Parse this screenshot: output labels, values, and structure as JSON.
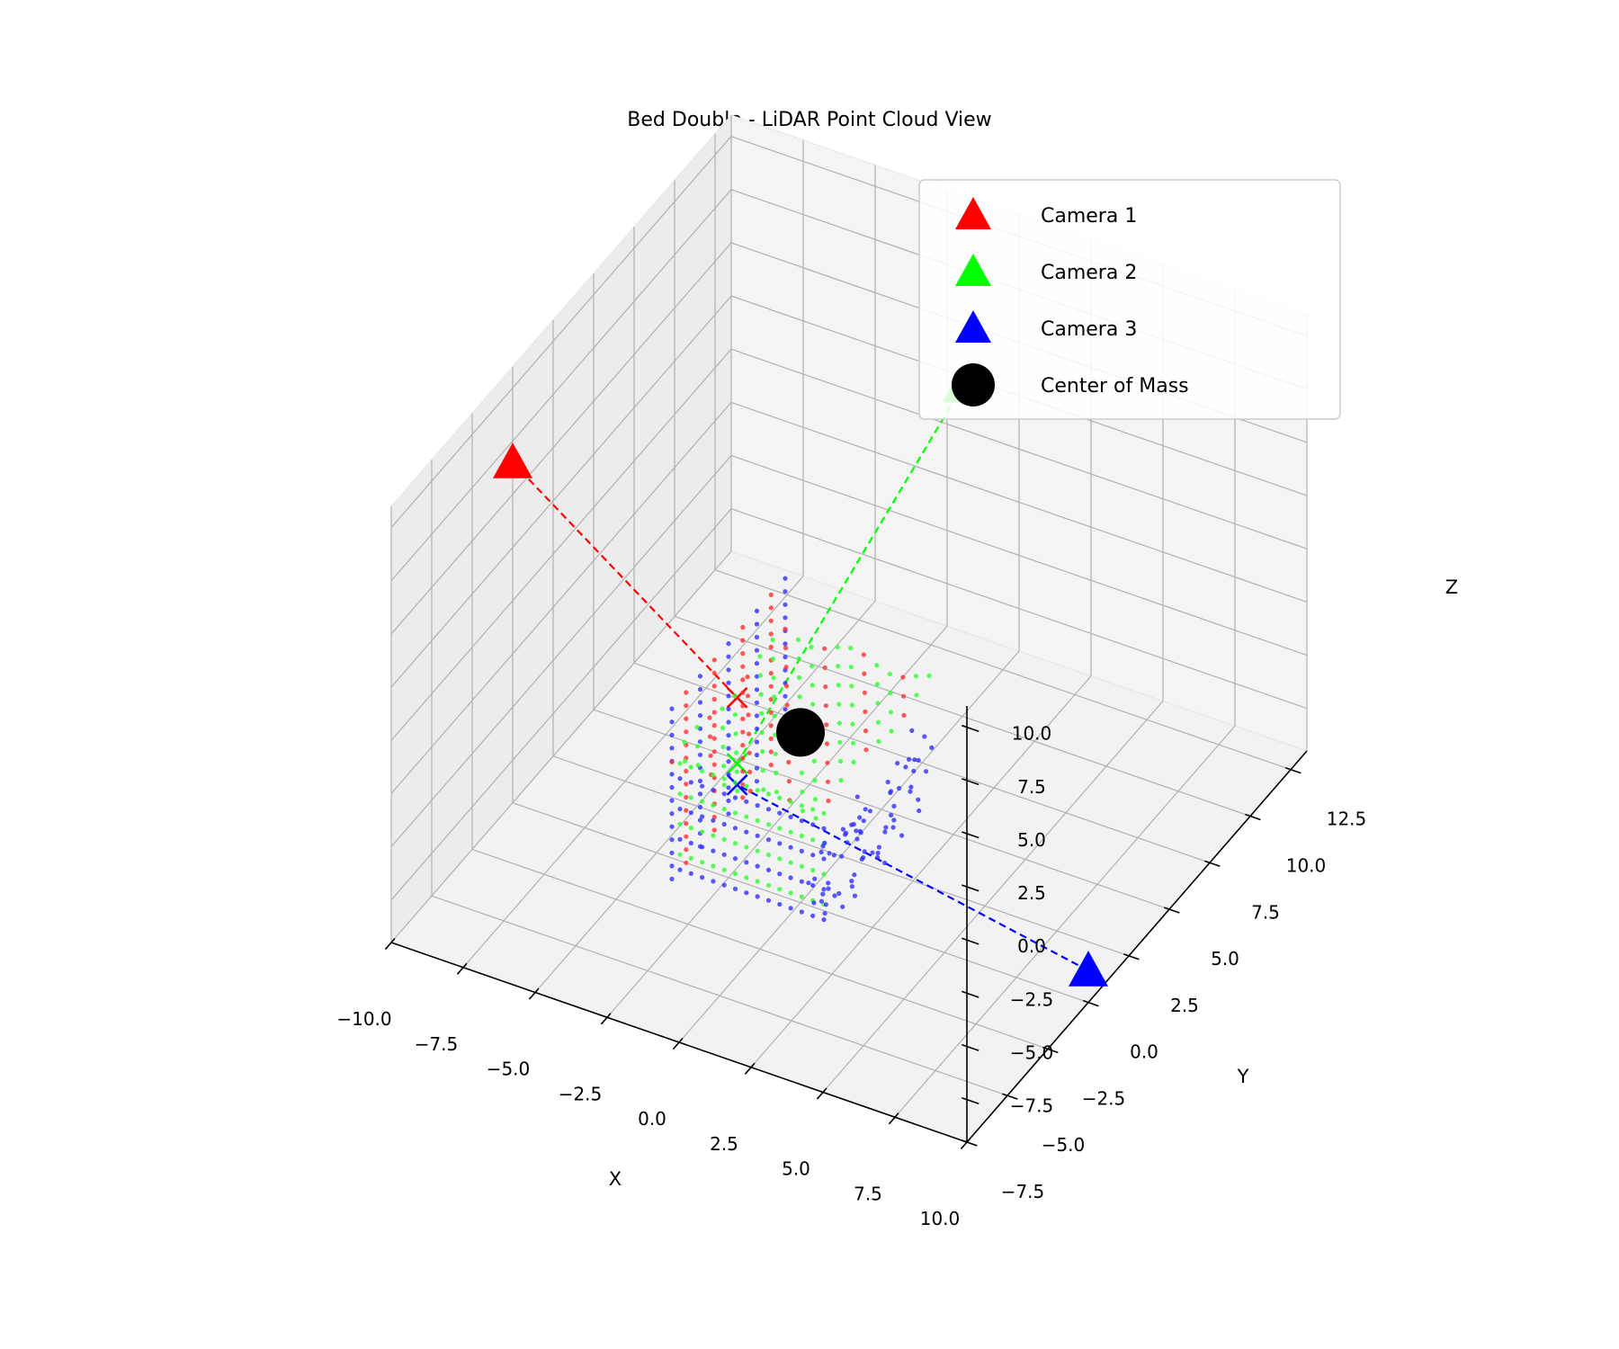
{
  "chart_data": {
    "type": "scatter",
    "projection": "3d",
    "title": "Bed Double - LiDAR Point Cloud View",
    "xlabel": "X",
    "ylabel": "Y",
    "zlabel": "Z",
    "xlim": [
      -10,
      10
    ],
    "ylim": [
      -7.5,
      13.5
    ],
    "zlim": [
      -9.5,
      11
    ],
    "xticks": [
      "−10.0",
      "−7.5",
      "−5.0",
      "−2.5",
      "0.0",
      "2.5",
      "5.0",
      "7.5",
      "10.0"
    ],
    "yticks": [
      "−7.5",
      "−5.0",
      "−2.5",
      "0.0",
      "2.5",
      "5.0",
      "7.5",
      "10.0",
      "12.5"
    ],
    "zticks": [
      "−7.5",
      "−5.0",
      "−2.5",
      "0.0",
      "2.5",
      "5.0",
      "7.5",
      "10.0"
    ],
    "grid": true,
    "legend_position": "top-right",
    "legend": [
      {
        "label": "Camera 1",
        "marker": "triangle",
        "color": "#ff0000"
      },
      {
        "label": "Camera 2",
        "marker": "triangle",
        "color": "#00ff00"
      },
      {
        "label": "Camera 3",
        "marker": "triangle",
        "color": "#0000ff"
      },
      {
        "label": "Center of Mass",
        "marker": "circle",
        "color": "#000000"
      }
    ],
    "cameras": [
      {
        "name": "Camera 1",
        "color": "#ff0000",
        "position": [
          -10,
          0,
          6.5
        ],
        "target": [
          -2.2,
          0,
          -0.9
        ]
      },
      {
        "name": "Camera 2",
        "color": "#00ff00",
        "position": [
          0,
          10,
          6
        ],
        "target": [
          -2.2,
          0,
          -4.0
        ]
      },
      {
        "name": "Camera 3",
        "color": "#0000ff",
        "position": [
          10,
          0,
          -8.0
        ],
        "target": [
          -2.2,
          0,
          -5.0
        ]
      }
    ],
    "center_of_mass": [
      0,
      0,
      -1.5
    ],
    "object_bounds": {
      "x": [
        -2.5,
        2.5
      ],
      "y": [
        -3.5,
        3.5
      ],
      "z": [
        -6.5,
        1.5
      ]
    },
    "point_cloud_colors": [
      "#ff3030",
      "#30ff30",
      "#3030ff"
    ]
  }
}
